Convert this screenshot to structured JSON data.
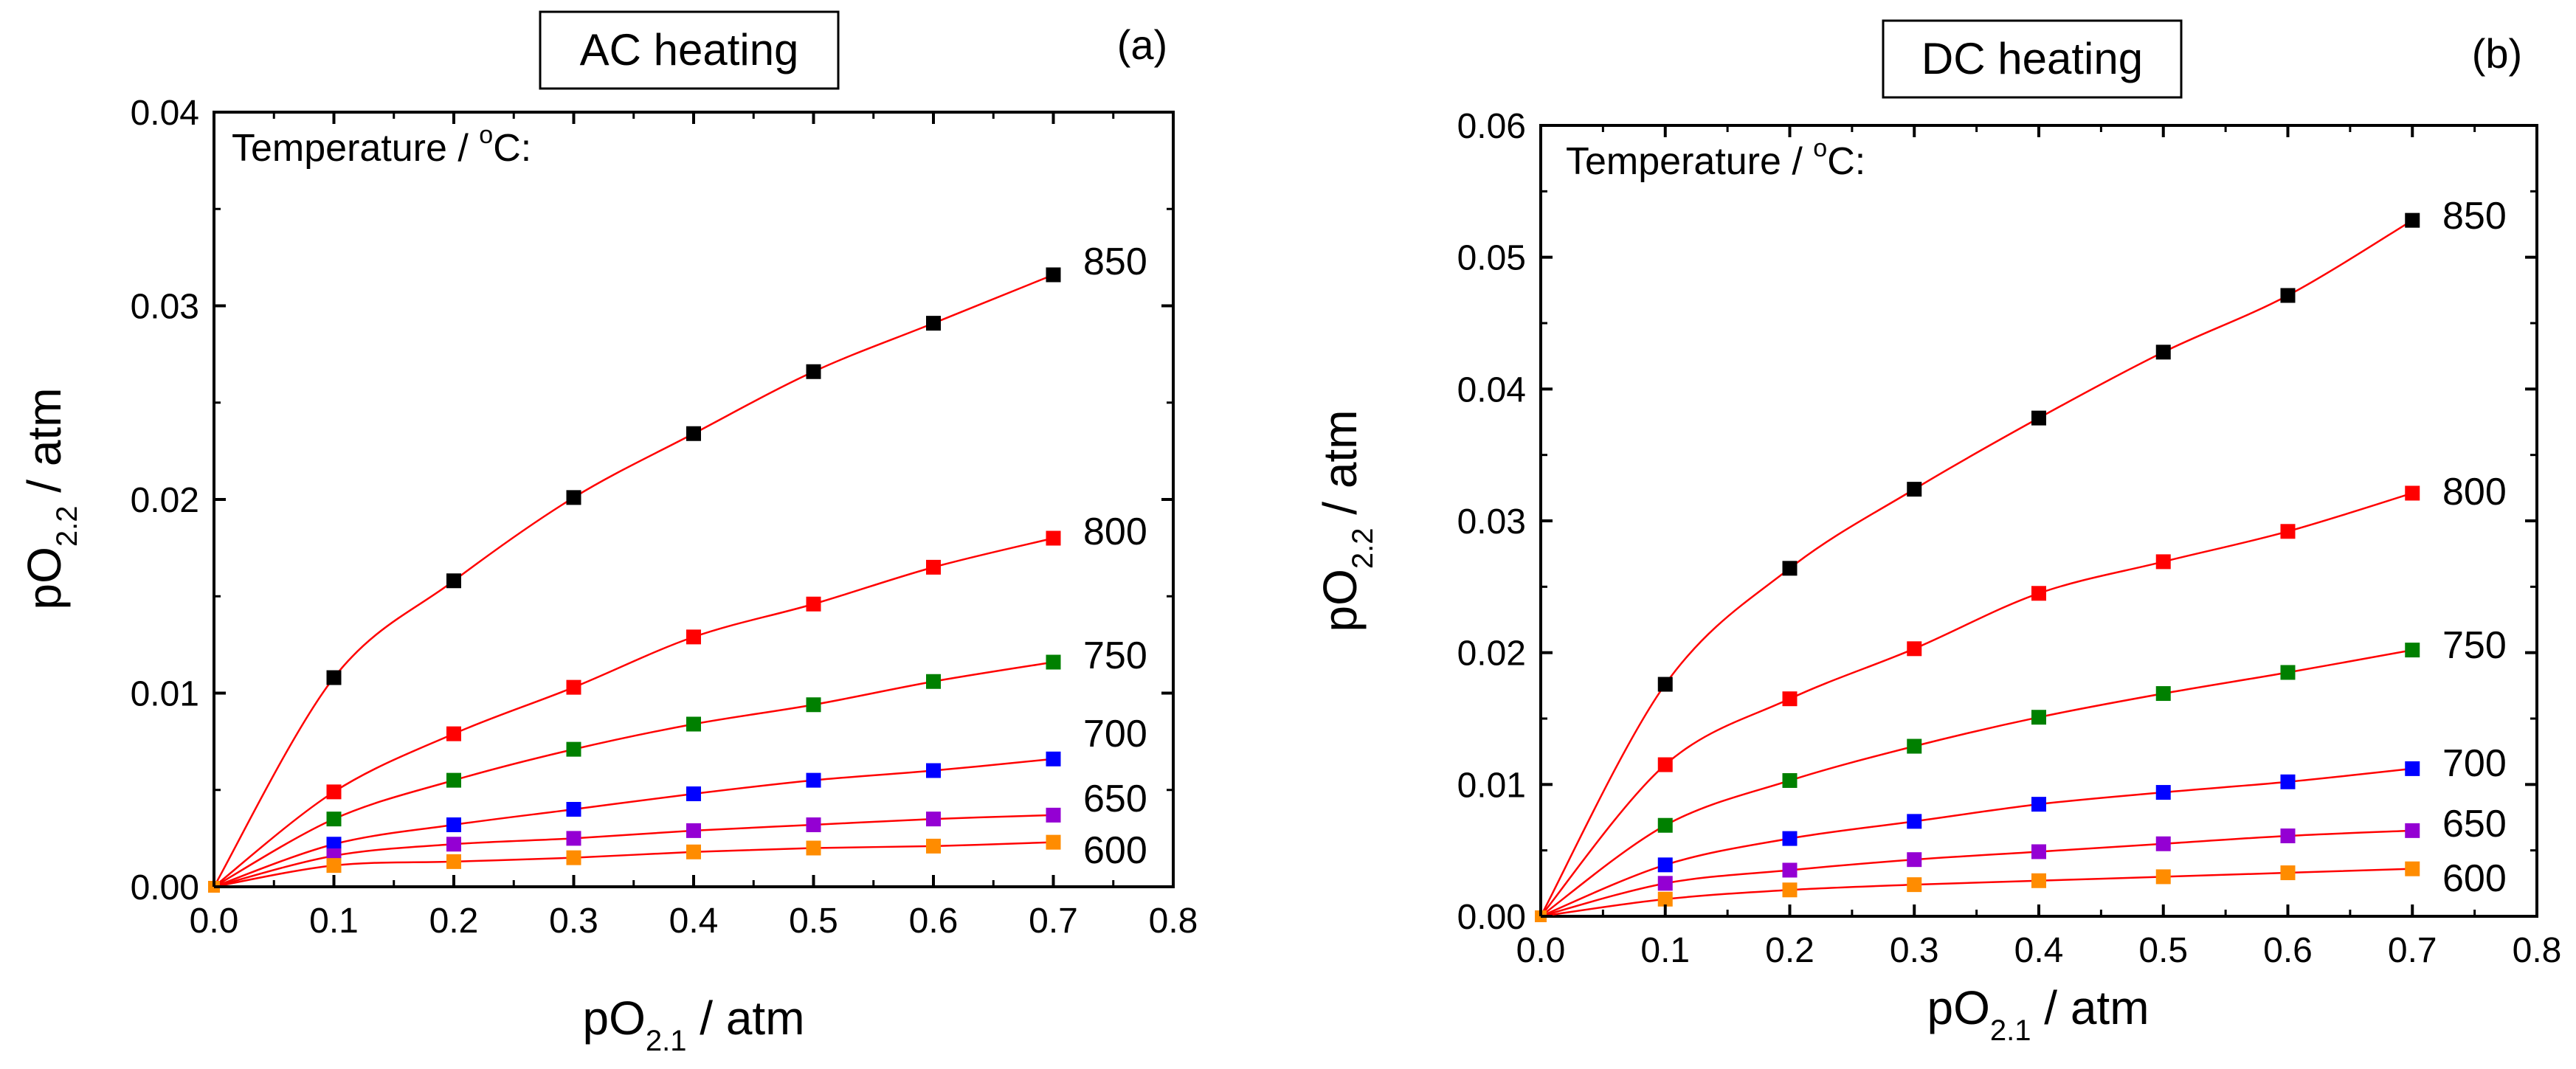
{
  "chart_data": [
    {
      "type": "scatter",
      "title": "AC heating",
      "panel_label": "(a)",
      "xlabel": {
        "base": "pO",
        "sub": "2.1",
        "rest": " / atm"
      },
      "ylabel": {
        "base": "pO",
        "sub": "2.2",
        "rest": " / atm"
      },
      "xlim": [
        0.0,
        0.8
      ],
      "ylim": [
        0.0,
        0.04
      ],
      "xticks": [
        0.0,
        0.1,
        0.2,
        0.3,
        0.4,
        0.5,
        0.6,
        0.7,
        0.8
      ],
      "xtick_labels": [
        "0.0",
        "0.1",
        "0.2",
        "0.3",
        "0.4",
        "0.5",
        "0.6",
        "0.7",
        "0.8"
      ],
      "yticks": [
        0.0,
        0.01,
        0.02,
        0.03,
        0.04
      ],
      "ytick_labels": [
        "0.00",
        "0.01",
        "0.02",
        "0.03",
        "0.04"
      ],
      "grid": false,
      "legend_title": {
        "text": "Temperature / ",
        "sup": "o",
        "rest": "C:"
      },
      "fit_line_color": "#ff0000",
      "series": [
        {
          "name": "850",
          "color": "#000000",
          "x": [
            0.1,
            0.2,
            0.3,
            0.4,
            0.5,
            0.6,
            0.7
          ],
          "y": [
            0.0108,
            0.0158,
            0.0201,
            0.0234,
            0.0266,
            0.0291,
            0.0316
          ]
        },
        {
          "name": "800",
          "color": "#ff0000",
          "x": [
            0.1,
            0.2,
            0.3,
            0.4,
            0.5,
            0.6,
            0.7
          ],
          "y": [
            0.0049,
            0.0079,
            0.0103,
            0.0129,
            0.0146,
            0.0165,
            0.018
          ]
        },
        {
          "name": "750",
          "color": "#008000",
          "x": [
            0.1,
            0.2,
            0.3,
            0.4,
            0.5,
            0.6,
            0.7
          ],
          "y": [
            0.0035,
            0.0055,
            0.0071,
            0.0084,
            0.0094,
            0.0106,
            0.0116
          ]
        },
        {
          "name": "700",
          "color": "#0000ff",
          "x": [
            0.1,
            0.2,
            0.3,
            0.4,
            0.5,
            0.6,
            0.7
          ],
          "y": [
            0.0022,
            0.0032,
            0.004,
            0.0048,
            0.0055,
            0.006,
            0.0066
          ]
        },
        {
          "name": "650",
          "color": "#9400d3",
          "x": [
            0.1,
            0.2,
            0.3,
            0.4,
            0.5,
            0.6,
            0.7
          ],
          "y": [
            0.0016,
            0.0022,
            0.0025,
            0.0029,
            0.0032,
            0.0035,
            0.0037
          ]
        },
        {
          "name": "600",
          "color": "#ff8c00",
          "x": [
            0.1,
            0.2,
            0.3,
            0.4,
            0.5,
            0.6,
            0.7
          ],
          "y": [
            0.0011,
            0.0013,
            0.0015,
            0.0018,
            0.002,
            0.0021,
            0.0023
          ]
        }
      ]
    },
    {
      "type": "scatter",
      "title": "DC heating",
      "panel_label": "(b)",
      "xlabel": {
        "base": "pO",
        "sub": "2.1",
        "rest": " / atm"
      },
      "ylabel": {
        "base": "pO",
        "sub": "2.2",
        "rest": " / atm"
      },
      "xlim": [
        0.0,
        0.8
      ],
      "ylim": [
        0.0,
        0.06
      ],
      "xticks": [
        0.0,
        0.1,
        0.2,
        0.3,
        0.4,
        0.5,
        0.6,
        0.7,
        0.8
      ],
      "xtick_labels": [
        "0.0",
        "0.1",
        "0.2",
        "0.3",
        "0.4",
        "0.5",
        "0.6",
        "0.7",
        "0.8"
      ],
      "yticks": [
        0.0,
        0.01,
        0.02,
        0.03,
        0.04,
        0.05,
        0.06
      ],
      "ytick_labels": [
        "0.00",
        "0.01",
        "0.02",
        "0.03",
        "0.04",
        "0.05",
        "0.06"
      ],
      "grid": false,
      "legend_title": {
        "text": "Temperature / ",
        "sup": "o",
        "rest": "C:"
      },
      "fit_line_color": "#ff0000",
      "series": [
        {
          "name": "850",
          "color": "#000000",
          "x": [
            0.1,
            0.2,
            0.3,
            0.4,
            0.5,
            0.6,
            0.7
          ],
          "y": [
            0.0176,
            0.0264,
            0.0324,
            0.0378,
            0.0428,
            0.0471,
            0.0528
          ]
        },
        {
          "name": "800",
          "color": "#ff0000",
          "x": [
            0.1,
            0.2,
            0.3,
            0.4,
            0.5,
            0.6,
            0.7
          ],
          "y": [
            0.0115,
            0.0165,
            0.0203,
            0.0245,
            0.0269,
            0.0292,
            0.0321
          ]
        },
        {
          "name": "750",
          "color": "#008000",
          "x": [
            0.1,
            0.2,
            0.3,
            0.4,
            0.5,
            0.6,
            0.7
          ],
          "y": [
            0.0069,
            0.0103,
            0.0129,
            0.0151,
            0.0169,
            0.0185,
            0.0202
          ]
        },
        {
          "name": "700",
          "color": "#0000ff",
          "x": [
            0.1,
            0.2,
            0.3,
            0.4,
            0.5,
            0.6,
            0.7
          ],
          "y": [
            0.0039,
            0.0059,
            0.0072,
            0.0085,
            0.0094,
            0.0102,
            0.0112
          ]
        },
        {
          "name": "650",
          "color": "#9400d3",
          "x": [
            0.1,
            0.2,
            0.3,
            0.4,
            0.5,
            0.6,
            0.7
          ],
          "y": [
            0.0025,
            0.0035,
            0.0043,
            0.0049,
            0.0055,
            0.0061,
            0.0065
          ]
        },
        {
          "name": "600",
          "color": "#ff8c00",
          "x": [
            0.1,
            0.2,
            0.3,
            0.4,
            0.5,
            0.6,
            0.7
          ],
          "y": [
            0.0013,
            0.002,
            0.0024,
            0.0027,
            0.003,
            0.0033,
            0.0036
          ]
        }
      ]
    }
  ]
}
